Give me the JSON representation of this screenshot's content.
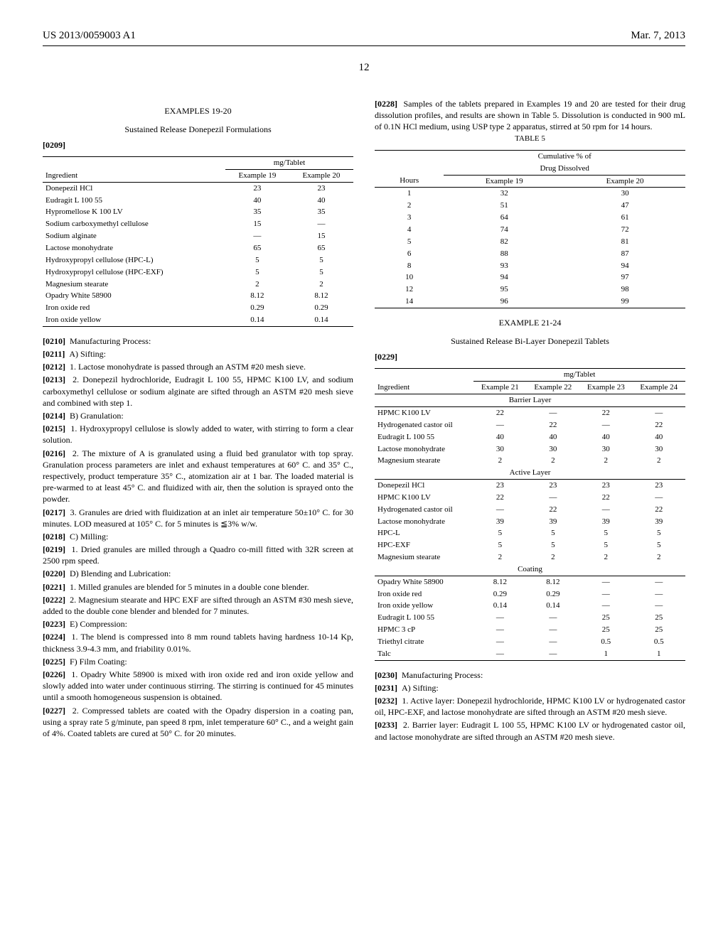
{
  "header": {
    "pubnum": "US 2013/0059003 A1",
    "date": "Mar. 7, 2013"
  },
  "page_number": "12",
  "left": {
    "ex_title": "EXAMPLES 19-20",
    "ex_subtitle": "Sustained Release Donepezil Formulations",
    "p0209": "[0209]",
    "tbl1": {
      "unit_hdr": "mg/Tablet",
      "col1": "Ingredient",
      "col2": "Example 19",
      "col3": "Example 20",
      "rows": [
        [
          "Donepezil HCl",
          "23",
          "23"
        ],
        [
          "Eudragit L 100 55",
          "40",
          "40"
        ],
        [
          "Hypromellose K 100 LV",
          "35",
          "35"
        ],
        [
          "Sodium carboxymethyl cellulose",
          "15",
          "—"
        ],
        [
          "Sodium alginate",
          "—",
          "15"
        ],
        [
          "Lactose monohydrate",
          "65",
          "65"
        ],
        [
          "Hydroxypropyl cellulose (HPC-L)",
          "5",
          "5"
        ],
        [
          "Hydroxypropyl cellulose (HPC-EXF)",
          "5",
          "5"
        ],
        [
          "Magnesium stearate",
          "2",
          "2"
        ],
        [
          "Opadry White 58900",
          "8.12",
          "8.12"
        ],
        [
          "Iron oxide red",
          "0.29",
          "0.29"
        ],
        [
          "Iron oxide yellow",
          "0.14",
          "0.14"
        ]
      ]
    },
    "p0210": "[0210]",
    "t0210": "Manufacturing Process:",
    "p0211": "[0211]",
    "t0211": "A) Sifting:",
    "p0212": "[0212]",
    "t0212": "1. Lactose monohydrate is passed through an ASTM #20 mesh sieve.",
    "p0213": "[0213]",
    "t0213": "2. Donepezil hydrochloride, Eudragit L 100 55, HPMC K100 LV, and sodium carboxymethyl cellulose or sodium alginate are sifted through an ASTM #20 mesh sieve and combined with step 1.",
    "p0214": "[0214]",
    "t0214": "B) Granulation:",
    "p0215": "[0215]",
    "t0215": "1. Hydroxypropyl cellulose is slowly added to water, with stirring to form a clear solution.",
    "p0216": "[0216]",
    "t0216": "2. The mixture of A is granulated using a fluid bed granulator with top spray. Granulation process parameters are inlet and exhaust temperatures at 60° C. and 35° C., respectively, product temperature 35° C., atomization air at 1 bar. The loaded material is pre-warmed to at least 45° C. and fluidized with air, then the solution is sprayed onto the powder.",
    "p0217": "[0217]",
    "t0217": "3. Granules are dried with fluidization at an inlet air temperature 50±10° C. for 30 minutes. LOD measured at 105° C. for 5 minutes is ≦3% w/w.",
    "p0218": "[0218]",
    "t0218": "C) Milling:",
    "p0219": "[0219]",
    "t0219": "1. Dried granules are milled through a Quadro co-mill fitted with 32R screen at 2500 rpm speed.",
    "p0220": "[0220]",
    "t0220": "D) Blending and Lubrication:",
    "p0221": "[0221]",
    "t0221": "1. Milled granules are blended for 5 minutes in a double cone blender.",
    "p0222": "[0222]",
    "t0222": "2. Magnesium stearate and HPC EXF are sifted through an ASTM #30 mesh sieve, added to the double cone blender and blended for 7 minutes.",
    "p0223": "[0223]",
    "t0223": "E) Compression:",
    "p0224": "[0224]",
    "t0224": "1. The blend is compressed into 8 mm round tablets having hardness 10-14 Kp, thickness 3.9-4.3 mm, and friability 0.01%.",
    "p0225": "[0225]",
    "t0225": "F) Film Coating:",
    "p0226": "[0226]",
    "t0226": "1. Opadry White 58900 is mixed with iron oxide red and iron oxide yellow and slowly added into water under continuous stirring. The stirring is continued for 45 minutes until a smooth homogeneous suspension is obtained.",
    "p0227": "[0227]",
    "t0227": "2. Compressed tablets are coated with the Opadry dispersion in a coating pan, using a spray rate 5 g/minute, pan speed 8 rpm, inlet temperature 60° C., and a weight gain of 4%. Coated tablets are cured at 50° C. for 20 minutes."
  },
  "right": {
    "p0228": "[0228]",
    "t0228": "Samples of the tablets prepared in Examples 19 and 20 are tested for their drug dissolution profiles, and results are shown in Table 5. Dissolution is conducted in 900 mL of 0.1N HCl medium, using USP type 2 apparatus, stirred at 50 rpm for 14 hours.",
    "tbl5": {
      "caption": "TABLE 5",
      "hdr1": "Cumulative % of",
      "hdr2": "Drug Dissolved",
      "col1": "Hours",
      "col2": "Example 19",
      "col3": "Example 20",
      "rows": [
        [
          "1",
          "32",
          "30"
        ],
        [
          "2",
          "51",
          "47"
        ],
        [
          "3",
          "64",
          "61"
        ],
        [
          "4",
          "74",
          "72"
        ],
        [
          "5",
          "82",
          "81"
        ],
        [
          "6",
          "88",
          "87"
        ],
        [
          "8",
          "93",
          "94"
        ],
        [
          "10",
          "94",
          "97"
        ],
        [
          "12",
          "95",
          "98"
        ],
        [
          "14",
          "96",
          "99"
        ]
      ]
    },
    "ex_title2": "EXAMPLE 21-24",
    "ex_subtitle2": "Sustained Release Bi-Layer Donepezil Tablets",
    "p0229": "[0229]",
    "tbl2": {
      "unit_hdr": "mg/Tablet",
      "col1": "Ingredient",
      "cols": [
        "Example 21",
        "Example 22",
        "Example 23",
        "Example 24"
      ],
      "sec1": "Barrier Layer",
      "rows1": [
        [
          "HPMC K100 LV",
          "22",
          "—",
          "22",
          "—"
        ],
        [
          "Hydrogenated castor oil",
          "—",
          "22",
          "—",
          "22"
        ],
        [
          "Eudragit L 100 55",
          "40",
          "40",
          "40",
          "40"
        ],
        [
          "Lactose monohydrate",
          "30",
          "30",
          "30",
          "30"
        ],
        [
          "Magnesium stearate",
          "2",
          "2",
          "2",
          "2"
        ]
      ],
      "sec2": "Active Layer",
      "rows2": [
        [
          "Donepezil HCl",
          "23",
          "23",
          "23",
          "23"
        ],
        [
          "HPMC K100 LV",
          "22",
          "—",
          "22",
          "—"
        ],
        [
          "Hydrogenated castor oil",
          "—",
          "22",
          "—",
          "22"
        ],
        [
          "Lactose monohydrate",
          "39",
          "39",
          "39",
          "39"
        ],
        [
          "HPC-L",
          "5",
          "5",
          "5",
          "5"
        ],
        [
          "HPC-EXF",
          "5",
          "5",
          "5",
          "5"
        ],
        [
          "Magnesium stearate",
          "2",
          "2",
          "2",
          "2"
        ]
      ],
      "sec3": "Coating",
      "rows3": [
        [
          "Opadry White 58900",
          "8.12",
          "8.12",
          "—",
          "—"
        ],
        [
          "Iron oxide red",
          "0.29",
          "0.29",
          "—",
          "—"
        ],
        [
          "Iron oxide yellow",
          "0.14",
          "0.14",
          "—",
          "—"
        ],
        [
          "Eudragit L 100 55",
          "—",
          "—",
          "25",
          "25"
        ],
        [
          "HPMC 3 cP",
          "—",
          "—",
          "25",
          "25"
        ],
        [
          "Triethyl citrate",
          "—",
          "—",
          "0.5",
          "0.5"
        ],
        [
          "Talc",
          "—",
          "—",
          "1",
          "1"
        ]
      ]
    },
    "p0230": "[0230]",
    "t0230": "Manufacturing Process:",
    "p0231": "[0231]",
    "t0231": "A) Sifting:",
    "p0232": "[0232]",
    "t0232": "1. Active layer: Donepezil hydrochloride, HPMC K100 LV or hydrogenated castor oil, HPC-EXF, and lactose monohydrate are sifted through an ASTM #20 mesh sieve.",
    "p0233": "[0233]",
    "t0233": "2. Barrier layer: Eudragit L 100 55, HPMC K100 LV or hydrogenated castor oil, and lactose monohydrate are sifted through an ASTM #20 mesh sieve."
  }
}
